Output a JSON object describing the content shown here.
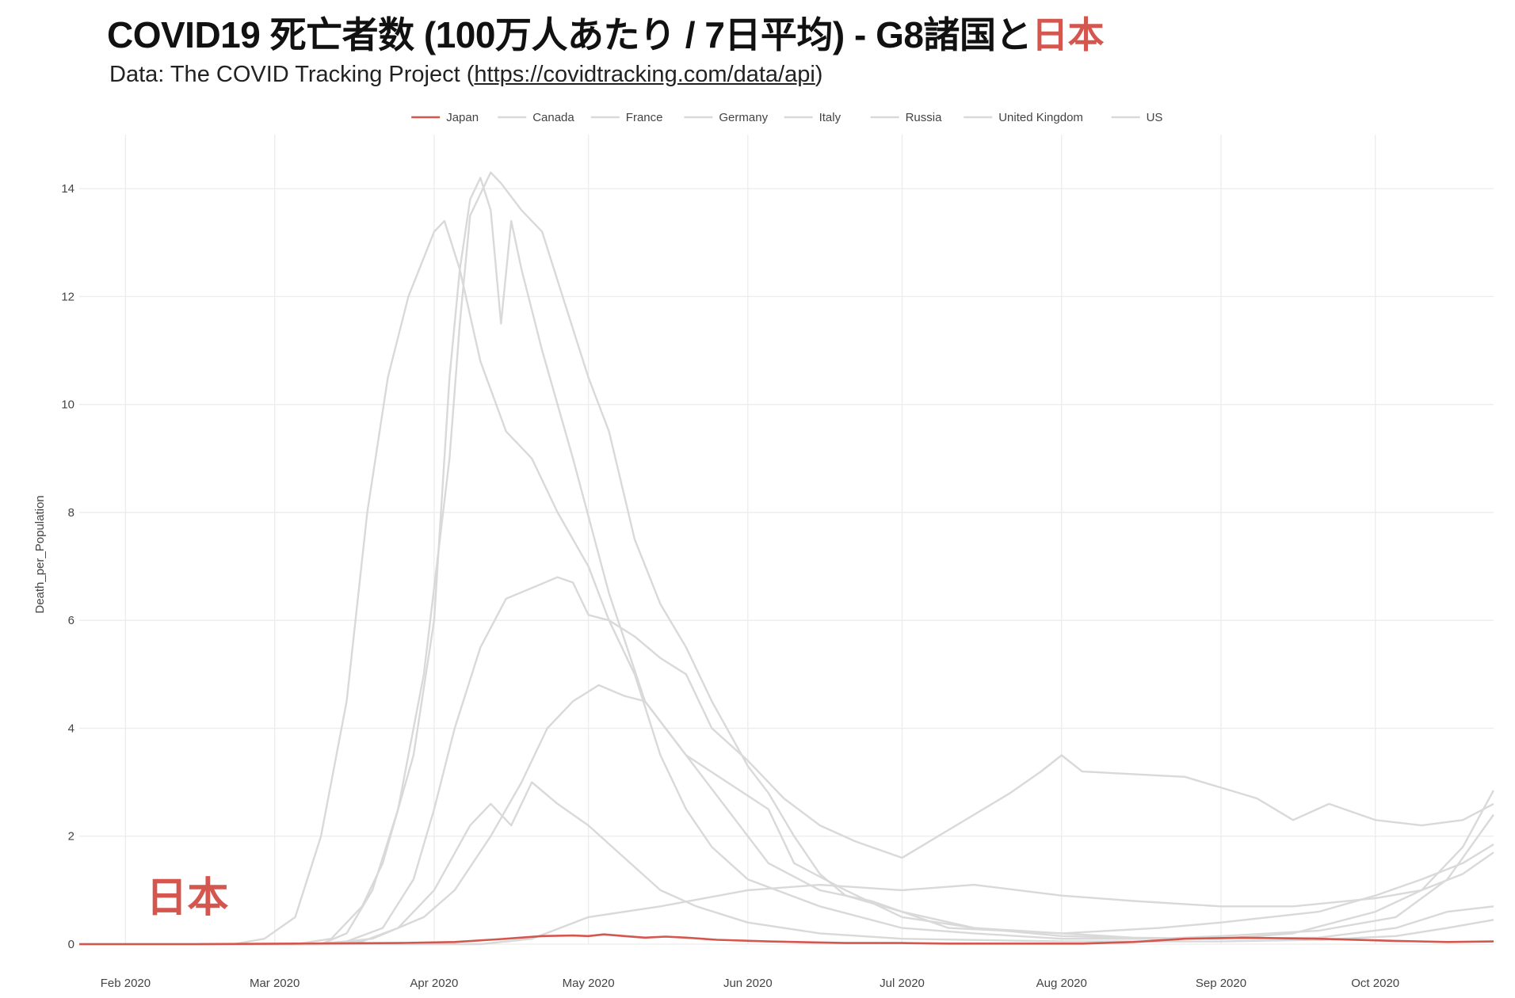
{
  "header": {
    "title_main": "COVID19 死亡者数 (100万人あたり / 7日平均) - G8諸国と",
    "title_accent": "日本",
    "subtitle_prefix": "Data: The COVID Tracking Project (",
    "subtitle_link": "https://covidtracking.com/data/api",
    "subtitle_suffix": ")"
  },
  "annotation": {
    "text": "日本",
    "date": "2020-02-05",
    "y": 0.6
  },
  "colors": {
    "highlight": "#d4574f",
    "other": "#d9d9d9",
    "grid": "#ececec",
    "text": "#444444"
  },
  "chart_data": {
    "type": "line",
    "title": "COVID19 死亡者数 (100万人あたり / 7日平均) - G8諸国と日本",
    "xlabel": "",
    "ylabel": "Death_per_Population",
    "xlim": [
      "2020-01-23",
      "2020-10-24"
    ],
    "ylim": [
      0,
      15
    ],
    "yticks": [
      0,
      2,
      4,
      6,
      8,
      10,
      12,
      14
    ],
    "xticks": [
      {
        "date": "2020-02-01",
        "label": "Feb 2020"
      },
      {
        "date": "2020-03-01",
        "label": "Mar 2020"
      },
      {
        "date": "2020-04-01",
        "label": "Apr 2020"
      },
      {
        "date": "2020-05-01",
        "label": "May 2020"
      },
      {
        "date": "2020-06-01",
        "label": "Jun 2020"
      },
      {
        "date": "2020-07-01",
        "label": "Jul 2020"
      },
      {
        "date": "2020-08-01",
        "label": "Aug 2020"
      },
      {
        "date": "2020-09-01",
        "label": "Sep 2020"
      },
      {
        "date": "2020-10-01",
        "label": "Oct 2020"
      }
    ],
    "grid": true,
    "legend": "top-center",
    "series": [
      {
        "name": "Japan",
        "highlight": true,
        "points": [
          [
            "2020-01-23",
            0
          ],
          [
            "2020-02-15",
            0
          ],
          [
            "2020-03-05",
            0.01
          ],
          [
            "2020-03-25",
            0.02
          ],
          [
            "2020-04-05",
            0.04
          ],
          [
            "2020-04-15",
            0.1
          ],
          [
            "2020-04-22",
            0.15
          ],
          [
            "2020-04-28",
            0.16
          ],
          [
            "2020-05-01",
            0.15
          ],
          [
            "2020-05-04",
            0.18
          ],
          [
            "2020-05-08",
            0.15
          ],
          [
            "2020-05-12",
            0.12
          ],
          [
            "2020-05-16",
            0.14
          ],
          [
            "2020-05-20",
            0.12
          ],
          [
            "2020-05-26",
            0.08
          ],
          [
            "2020-06-05",
            0.05
          ],
          [
            "2020-06-20",
            0.02
          ],
          [
            "2020-07-01",
            0.02
          ],
          [
            "2020-07-10",
            0.01
          ],
          [
            "2020-08-05",
            0.01
          ],
          [
            "2020-08-15",
            0.04
          ],
          [
            "2020-08-25",
            0.1
          ],
          [
            "2020-09-05",
            0.12
          ],
          [
            "2020-09-20",
            0.1
          ],
          [
            "2020-10-05",
            0.06
          ],
          [
            "2020-10-15",
            0.04
          ],
          [
            "2020-10-24",
            0.05
          ]
        ]
      },
      {
        "name": "Canada",
        "highlight": false,
        "points": [
          [
            "2020-01-23",
            0
          ],
          [
            "2020-03-10",
            0
          ],
          [
            "2020-03-20",
            0.1
          ],
          [
            "2020-03-30",
            0.5
          ],
          [
            "2020-04-05",
            1.0
          ],
          [
            "2020-04-12",
            2.0
          ],
          [
            "2020-04-18",
            3.0
          ],
          [
            "2020-04-23",
            4.0
          ],
          [
            "2020-04-28",
            4.5
          ],
          [
            "2020-05-03",
            4.8
          ],
          [
            "2020-05-08",
            4.6
          ],
          [
            "2020-05-12",
            4.5
          ],
          [
            "2020-05-20",
            3.5
          ],
          [
            "2020-05-28",
            3.0
          ],
          [
            "2020-06-05",
            2.5
          ],
          [
            "2020-06-10",
            1.5
          ],
          [
            "2020-06-20",
            1.0
          ],
          [
            "2020-07-01",
            0.5
          ],
          [
            "2020-07-15",
            0.3
          ],
          [
            "2020-08-01",
            0.2
          ],
          [
            "2020-08-15",
            0.12
          ],
          [
            "2020-09-01",
            0.1
          ],
          [
            "2020-09-20",
            0.12
          ],
          [
            "2020-10-05",
            0.3
          ],
          [
            "2020-10-15",
            0.6
          ],
          [
            "2020-10-24",
            0.7
          ]
        ]
      },
      {
        "name": "France",
        "highlight": false,
        "points": [
          [
            "2020-01-23",
            0
          ],
          [
            "2020-03-05",
            0
          ],
          [
            "2020-03-12",
            0.1
          ],
          [
            "2020-03-18",
            0.7
          ],
          [
            "2020-03-22",
            1.5
          ],
          [
            "2020-03-25",
            2.5
          ],
          [
            "2020-03-28",
            3.5
          ],
          [
            "2020-04-01",
            6.0
          ],
          [
            "2020-04-04",
            10.5
          ],
          [
            "2020-04-06",
            12.5
          ],
          [
            "2020-04-08",
            13.8
          ],
          [
            "2020-04-10",
            14.2
          ],
          [
            "2020-04-12",
            13.6
          ],
          [
            "2020-04-14",
            11.5
          ],
          [
            "2020-04-16",
            13.4
          ],
          [
            "2020-04-18",
            12.5
          ],
          [
            "2020-04-22",
            11.0
          ],
          [
            "2020-04-28",
            9.0
          ],
          [
            "2020-05-05",
            6.5
          ],
          [
            "2020-05-12",
            4.5
          ],
          [
            "2020-05-20",
            3.5
          ],
          [
            "2020-05-28",
            2.5
          ],
          [
            "2020-06-05",
            1.5
          ],
          [
            "2020-06-15",
            1.0
          ],
          [
            "2020-06-25",
            0.8
          ],
          [
            "2020-07-10",
            0.3
          ],
          [
            "2020-08-01",
            0.2
          ],
          [
            "2020-08-20",
            0.3
          ],
          [
            "2020-09-01",
            0.4
          ],
          [
            "2020-09-20",
            0.6
          ],
          [
            "2020-10-01",
            0.9
          ],
          [
            "2020-10-10",
            1.2
          ],
          [
            "2020-10-18",
            1.5
          ],
          [
            "2020-10-24",
            1.85
          ]
        ]
      },
      {
        "name": "Germany",
        "highlight": false,
        "points": [
          [
            "2020-01-23",
            0
          ],
          [
            "2020-03-10",
            0
          ],
          [
            "2020-03-18",
            0.05
          ],
          [
            "2020-03-25",
            0.3
          ],
          [
            "2020-04-01",
            1.0
          ],
          [
            "2020-04-08",
            2.2
          ],
          [
            "2020-04-12",
            2.6
          ],
          [
            "2020-04-16",
            2.2
          ],
          [
            "2020-04-20",
            3.0
          ],
          [
            "2020-04-25",
            2.6
          ],
          [
            "2020-05-01",
            2.2
          ],
          [
            "2020-05-08",
            1.6
          ],
          [
            "2020-05-15",
            1.0
          ],
          [
            "2020-05-22",
            0.7
          ],
          [
            "2020-06-01",
            0.4
          ],
          [
            "2020-06-15",
            0.2
          ],
          [
            "2020-07-01",
            0.1
          ],
          [
            "2020-08-01",
            0.05
          ],
          [
            "2020-09-01",
            0.05
          ],
          [
            "2020-09-20",
            0.08
          ],
          [
            "2020-10-05",
            0.15
          ],
          [
            "2020-10-15",
            0.3
          ],
          [
            "2020-10-24",
            0.45
          ]
        ]
      },
      {
        "name": "Italy",
        "highlight": false,
        "points": [
          [
            "2020-01-23",
            0
          ],
          [
            "2020-02-22",
            0
          ],
          [
            "2020-02-28",
            0.1
          ],
          [
            "2020-03-05",
            0.5
          ],
          [
            "2020-03-10",
            2.0
          ],
          [
            "2020-03-15",
            4.5
          ],
          [
            "2020-03-19",
            8.0
          ],
          [
            "2020-03-23",
            10.5
          ],
          [
            "2020-03-27",
            12.0
          ],
          [
            "2020-04-01",
            13.2
          ],
          [
            "2020-04-03",
            13.4
          ],
          [
            "2020-04-06",
            12.5
          ],
          [
            "2020-04-10",
            10.8
          ],
          [
            "2020-04-15",
            9.5
          ],
          [
            "2020-04-20",
            9.0
          ],
          [
            "2020-04-25",
            8.0
          ],
          [
            "2020-05-01",
            7.0
          ],
          [
            "2020-05-05",
            6.0
          ],
          [
            "2020-05-10",
            5.0
          ],
          [
            "2020-05-15",
            3.5
          ],
          [
            "2020-05-20",
            2.5
          ],
          [
            "2020-05-25",
            1.8
          ],
          [
            "2020-06-01",
            1.2
          ],
          [
            "2020-06-15",
            0.7
          ],
          [
            "2020-07-01",
            0.3
          ],
          [
            "2020-07-15",
            0.2
          ],
          [
            "2020-08-01",
            0.1
          ],
          [
            "2020-08-20",
            0.1
          ],
          [
            "2020-09-01",
            0.15
          ],
          [
            "2020-09-20",
            0.25
          ],
          [
            "2020-10-05",
            0.5
          ],
          [
            "2020-10-15",
            1.2
          ],
          [
            "2020-10-24",
            2.4
          ]
        ]
      },
      {
        "name": "Russia",
        "highlight": false,
        "points": [
          [
            "2020-01-23",
            0
          ],
          [
            "2020-04-10",
            0
          ],
          [
            "2020-04-20",
            0.1
          ],
          [
            "2020-05-01",
            0.5
          ],
          [
            "2020-05-15",
            0.7
          ],
          [
            "2020-06-01",
            1.0
          ],
          [
            "2020-06-15",
            1.1
          ],
          [
            "2020-07-01",
            1.0
          ],
          [
            "2020-07-15",
            1.1
          ],
          [
            "2020-08-01",
            0.9
          ],
          [
            "2020-08-15",
            0.8
          ],
          [
            "2020-09-01",
            0.7
          ],
          [
            "2020-09-15",
            0.7
          ],
          [
            "2020-10-01",
            0.85
          ],
          [
            "2020-10-10",
            1.0
          ],
          [
            "2020-10-18",
            1.3
          ],
          [
            "2020-10-24",
            1.7
          ]
        ]
      },
      {
        "name": "United Kingdom",
        "highlight": false,
        "points": [
          [
            "2020-01-23",
            0
          ],
          [
            "2020-03-10",
            0
          ],
          [
            "2020-03-15",
            0.2
          ],
          [
            "2020-03-20",
            1.0
          ],
          [
            "2020-03-25",
            2.5
          ],
          [
            "2020-03-30",
            5.0
          ],
          [
            "2020-04-04",
            9.0
          ],
          [
            "2020-04-06",
            11.5
          ],
          [
            "2020-04-08",
            13.5
          ],
          [
            "2020-04-10",
            13.9
          ],
          [
            "2020-04-12",
            14.3
          ],
          [
            "2020-04-14",
            14.1
          ],
          [
            "2020-04-18",
            13.6
          ],
          [
            "2020-04-22",
            13.2
          ],
          [
            "2020-04-26",
            12.0
          ],
          [
            "2020-05-01",
            10.5
          ],
          [
            "2020-05-05",
            9.5
          ],
          [
            "2020-05-10",
            7.5
          ],
          [
            "2020-05-15",
            6.3
          ],
          [
            "2020-05-20",
            5.5
          ],
          [
            "2020-05-25",
            4.5
          ],
          [
            "2020-06-01",
            3.3
          ],
          [
            "2020-06-05",
            2.8
          ],
          [
            "2020-06-10",
            2.0
          ],
          [
            "2020-06-15",
            1.3
          ],
          [
            "2020-06-20",
            0.9
          ],
          [
            "2020-07-01",
            0.6
          ],
          [
            "2020-07-15",
            0.3
          ],
          [
            "2020-08-01",
            0.15
          ],
          [
            "2020-08-20",
            0.1
          ],
          [
            "2020-09-01",
            0.1
          ],
          [
            "2020-09-15",
            0.2
          ],
          [
            "2020-10-01",
            0.6
          ],
          [
            "2020-10-10",
            1.0
          ],
          [
            "2020-10-18",
            1.8
          ],
          [
            "2020-10-24",
            2.85
          ]
        ]
      },
      {
        "name": "US",
        "highlight": false,
        "points": [
          [
            "2020-01-23",
            0
          ],
          [
            "2020-03-08",
            0
          ],
          [
            "2020-03-15",
            0.05
          ],
          [
            "2020-03-22",
            0.3
          ],
          [
            "2020-03-28",
            1.2
          ],
          [
            "2020-04-01",
            2.5
          ],
          [
            "2020-04-05",
            4.0
          ],
          [
            "2020-04-10",
            5.5
          ],
          [
            "2020-04-15",
            6.4
          ],
          [
            "2020-04-20",
            6.6
          ],
          [
            "2020-04-25",
            6.8
          ],
          [
            "2020-04-28",
            6.7
          ],
          [
            "2020-05-01",
            6.1
          ],
          [
            "2020-05-05",
            6.0
          ],
          [
            "2020-05-10",
            5.7
          ],
          [
            "2020-05-15",
            5.3
          ],
          [
            "2020-05-20",
            5.0
          ],
          [
            "2020-05-25",
            4.0
          ],
          [
            "2020-06-01",
            3.4
          ],
          [
            "2020-06-08",
            2.7
          ],
          [
            "2020-06-15",
            2.2
          ],
          [
            "2020-06-22",
            1.9
          ],
          [
            "2020-07-01",
            1.6
          ],
          [
            "2020-07-08",
            2.0
          ],
          [
            "2020-07-15",
            2.4
          ],
          [
            "2020-07-22",
            2.8
          ],
          [
            "2020-07-28",
            3.2
          ],
          [
            "2020-08-01",
            3.5
          ],
          [
            "2020-08-05",
            3.2
          ],
          [
            "2020-08-15",
            3.15
          ],
          [
            "2020-08-25",
            3.1
          ],
          [
            "2020-09-01",
            2.9
          ],
          [
            "2020-09-08",
            2.7
          ],
          [
            "2020-09-15",
            2.3
          ],
          [
            "2020-09-22",
            2.6
          ],
          [
            "2020-10-01",
            2.3
          ],
          [
            "2020-10-10",
            2.2
          ],
          [
            "2020-10-18",
            2.3
          ],
          [
            "2020-10-24",
            2.6
          ]
        ]
      }
    ]
  }
}
